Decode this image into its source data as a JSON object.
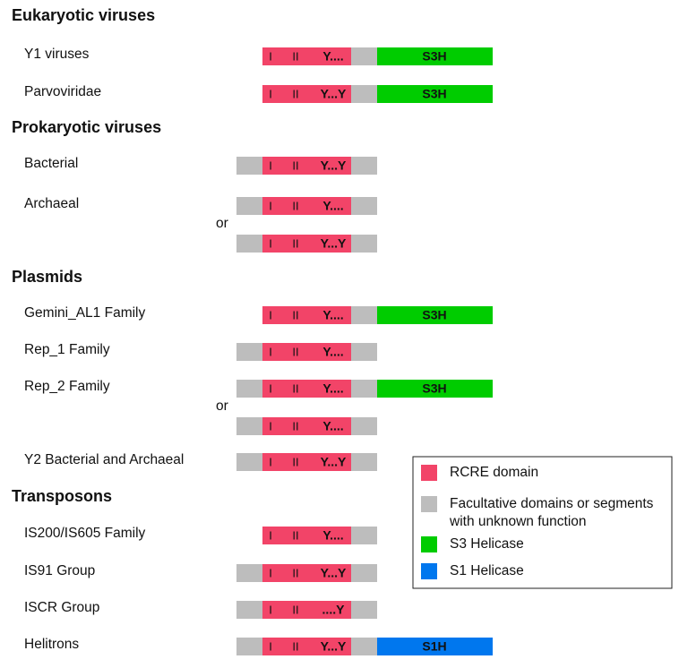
{
  "sections": [
    {
      "title": "Eukaryotic viruses",
      "rows": [
        {
          "label": "Y1 viruses",
          "bars": [
            {
              "left": false,
              "motifs": [
                "I",
                "II",
                "Y...."
              ],
              "right": true,
              "helicase": "S3H",
              "helicase_color": "#00cc00"
            }
          ]
        },
        {
          "label": "Parvoviridae",
          "bars": [
            {
              "left": false,
              "motifs": [
                "I",
                "II",
                "Y...Y"
              ],
              "right": true,
              "helicase": "S3H",
              "helicase_color": "#00cc00"
            }
          ]
        }
      ]
    },
    {
      "title": "Prokaryotic viruses",
      "rows": [
        {
          "label": "Bacterial",
          "bars": [
            {
              "left": true,
              "motifs": [
                "I",
                "II",
                "Y...Y"
              ],
              "right": true
            }
          ]
        },
        {
          "label": "Archaeal",
          "or": "or",
          "bars": [
            {
              "left": true,
              "motifs": [
                "I",
                "II",
                "Y...."
              ],
              "right": true
            },
            {
              "left": true,
              "motifs": [
                "I",
                "II",
                "Y...Y"
              ],
              "right": true
            }
          ]
        }
      ]
    },
    {
      "title": "Plasmids",
      "rows": [
        {
          "label": "Gemini_AL1 Family",
          "bars": [
            {
              "left": false,
              "motifs": [
                "I",
                "II",
                "Y...."
              ],
              "right": true,
              "helicase": "S3H",
              "helicase_color": "#00cc00"
            }
          ]
        },
        {
          "label": "Rep_1 Family",
          "bars": [
            {
              "left": true,
              "motifs": [
                "I",
                "II",
                "Y...."
              ],
              "right": true
            }
          ]
        },
        {
          "label": "Rep_2 Family",
          "or": "or",
          "bars": [
            {
              "left": true,
              "motifs": [
                "I",
                "II",
                "Y...."
              ],
              "right": true,
              "helicase": "S3H",
              "helicase_color": "#00cc00"
            },
            {
              "left": true,
              "motifs": [
                "I",
                "II",
                "Y...."
              ],
              "right": true
            }
          ]
        },
        {
          "label": "Y2 Bacterial and Archaeal",
          "bars": [
            {
              "left": true,
              "motifs": [
                "I",
                "II",
                "Y...Y"
              ],
              "right": true
            }
          ]
        }
      ]
    },
    {
      "title": "Transposons",
      "rows": [
        {
          "label": "IS200/IS605 Family",
          "bars": [
            {
              "left": false,
              "motifs": [
                "I",
                "II",
                "Y...."
              ],
              "right": true
            }
          ]
        },
        {
          "label": "IS91 Group",
          "bars": [
            {
              "left": true,
              "motifs": [
                "I",
                "II",
                "Y...Y"
              ],
              "right": true
            }
          ]
        },
        {
          "label": "ISCR Group",
          "bars": [
            {
              "left": true,
              "motifs": [
                "I",
                "II",
                "....Y"
              ],
              "right": true
            }
          ]
        },
        {
          "label": "Helitrons",
          "bars": [
            {
              "left": true,
              "motifs": [
                "I",
                "II",
                "Y...Y"
              ],
              "right": true,
              "helicase": "S1H",
              "helicase_color": "#0077ee"
            }
          ]
        }
      ]
    }
  ],
  "legend": [
    {
      "color": "#f24468",
      "lines": [
        "RCRE domain"
      ]
    },
    {
      "color": "#bdbdbd",
      "lines": [
        "Facultative domains or segments",
        "with unknown function"
      ]
    },
    {
      "color": "#00cc00",
      "lines": [
        "S3 Helicase"
      ]
    },
    {
      "color": "#0077ee",
      "lines": [
        "S1 Helicase"
      ]
    }
  ],
  "rcre_color": "#f24468",
  "segment_color": "#bdbdbd"
}
